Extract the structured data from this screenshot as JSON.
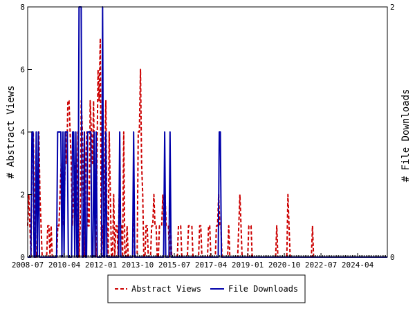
{
  "chart_data": {
    "type": "line",
    "title": "",
    "xlabel": "",
    "ylabel_left": "# Abstract Views",
    "ylabel_right": "# File Downloads",
    "ylim_left": [
      0,
      8
    ],
    "ylim_right": [
      0,
      2
    ],
    "x_start": "2008-07",
    "x_end": "2025-09",
    "x_ticks": [
      "2008-07",
      "2010-04",
      "2012-01",
      "2013-10",
      "2015-07",
      "2017-04",
      "2019-01",
      "2020-10",
      "2022-07",
      "2024-04"
    ],
    "y_left_ticks": [
      "0",
      "2",
      "4",
      "6",
      "8"
    ],
    "y_right_ticks": [
      "0",
      "2"
    ],
    "legend_position": "bottom",
    "series": [
      {
        "name": "Abstract Views",
        "axis": "left",
        "color": "#cc0000",
        "style": "dashed",
        "values": [
          1,
          2,
          1,
          0,
          4,
          4,
          2,
          0,
          0,
          2,
          4,
          2,
          1,
          0,
          0,
          0,
          0,
          0,
          1,
          1,
          0,
          1,
          0,
          0,
          0,
          0,
          0,
          1,
          1,
          2,
          3,
          2,
          1,
          2,
          4,
          3,
          5,
          5,
          4,
          3,
          1,
          2,
          3,
          3,
          1,
          4,
          0,
          1,
          5,
          4,
          2,
          0,
          3,
          4,
          1,
          1,
          5,
          4,
          3,
          5,
          2,
          0,
          3,
          6,
          5,
          7,
          0,
          1,
          0,
          3,
          5,
          1,
          0,
          4,
          2,
          0,
          0,
          2,
          0,
          1,
          1,
          0,
          2,
          1,
          1,
          0,
          4,
          0,
          0,
          1,
          0,
          0,
          0,
          0,
          0,
          2,
          0,
          0,
          0,
          4,
          4,
          6,
          3,
          2,
          0,
          0,
          1,
          1,
          0,
          0,
          0,
          1,
          1,
          2,
          1,
          1,
          0,
          0,
          1,
          1,
          1,
          2,
          1,
          2,
          1,
          1,
          1,
          0,
          1,
          0,
          0,
          0,
          0,
          0,
          0,
          1,
          1,
          1,
          0,
          0,
          0,
          0,
          0,
          0,
          1,
          1,
          1,
          1,
          0,
          0,
          0,
          0,
          0,
          0,
          1,
          1,
          0,
          0,
          0,
          0,
          0,
          0,
          1,
          1,
          0,
          0,
          0,
          0,
          0,
          1,
          1,
          2,
          1,
          1,
          0,
          0,
          0,
          0,
          0,
          0,
          1,
          0,
          0,
          0,
          0,
          0,
          0,
          0,
          0,
          1,
          2,
          1,
          0,
          0,
          0,
          0,
          0,
          0,
          1,
          1,
          1,
          0,
          0,
          0,
          0,
          0,
          0,
          0,
          0,
          0,
          0,
          0,
          0,
          0,
          0,
          0,
          0,
          0,
          0,
          0,
          0,
          0,
          0,
          1,
          0,
          0,
          0,
          0,
          0,
          0,
          0,
          0,
          0,
          2,
          1,
          0,
          0,
          0,
          0,
          0,
          0,
          0,
          0,
          0,
          0,
          0,
          0,
          0,
          0,
          0,
          0,
          0,
          0,
          0,
          0,
          1,
          0,
          0,
          0,
          0,
          0,
          0,
          0,
          0,
          0,
          0,
          0,
          0,
          0,
          0,
          0,
          0,
          0,
          0,
          0,
          0,
          0,
          0,
          0,
          0,
          0,
          0,
          0,
          0,
          0,
          0,
          0,
          0,
          0,
          0,
          0,
          0,
          0,
          0,
          0,
          0,
          0,
          0,
          0,
          0,
          0,
          0,
          0,
          0,
          0,
          0,
          0,
          0,
          0,
          0,
          0,
          0,
          0,
          0,
          0,
          0,
          0,
          0,
          0,
          0,
          0,
          0,
          0
        ]
      },
      {
        "name": "File Downloads",
        "axis": "right",
        "color": "#0000aa",
        "style": "solid",
        "values": [
          0,
          0,
          0,
          0,
          1,
          1,
          0,
          0,
          1,
          0,
          1,
          0,
          0,
          0,
          0,
          0,
          0,
          0,
          0,
          0,
          0,
          0,
          0,
          0,
          0,
          0,
          0,
          0,
          1,
          1,
          1,
          1,
          0,
          1,
          0,
          1,
          1,
          1,
          0,
          0,
          0,
          0,
          1,
          1,
          0,
          1,
          0,
          0,
          2,
          2,
          2,
          0,
          0,
          1,
          0,
          0,
          1,
          1,
          1,
          1,
          0,
          0,
          1,
          0,
          1,
          0,
          0,
          0,
          0,
          0,
          2,
          0,
          0,
          1,
          0,
          0,
          0,
          0,
          0,
          0,
          0,
          0,
          0,
          0,
          0,
          0,
          1,
          0,
          0,
          0,
          0,
          0,
          0,
          0,
          0,
          0,
          0,
          0,
          0,
          1,
          0,
          0,
          0,
          0,
          0,
          0,
          0,
          0,
          0,
          0,
          0,
          0,
          0,
          0,
          0,
          0,
          0,
          0,
          0,
          0,
          0,
          0,
          0,
          0,
          0,
          0,
          0,
          0,
          1,
          0,
          0,
          0,
          0,
          1,
          0,
          0,
          0,
          0,
          0,
          0,
          0,
          0,
          0,
          0,
          0,
          0,
          0,
          0,
          0,
          0,
          0,
          0,
          0,
          0,
          0,
          0,
          0,
          0,
          0,
          0,
          0,
          0,
          0,
          0,
          0,
          0,
          0,
          0,
          0,
          0,
          0,
          0,
          0,
          0,
          0,
          0,
          0,
          0,
          0,
          1,
          1,
          0,
          0,
          0,
          0,
          0,
          0,
          0,
          0,
          0,
          0,
          0,
          0,
          0,
          0,
          0,
          0,
          0,
          0,
          0,
          0,
          0,
          0,
          0,
          0,
          0,
          0,
          0,
          0,
          0,
          0,
          0,
          0,
          0,
          0,
          0,
          0,
          0,
          0,
          0,
          0,
          0,
          0,
          0,
          0,
          0,
          0,
          0,
          0,
          0,
          0,
          0,
          0,
          0,
          0,
          0,
          0,
          0,
          0,
          0,
          0,
          0,
          0,
          0,
          0,
          0,
          0,
          0,
          0,
          0,
          0,
          0,
          0,
          0,
          0,
          0,
          0,
          0,
          0,
          0,
          0,
          0,
          0,
          0,
          0,
          0,
          0,
          0,
          0,
          0,
          0,
          0,
          0,
          0,
          0,
          0,
          0,
          0,
          0,
          0,
          0,
          0,
          0,
          0,
          0,
          0,
          0,
          0,
          0,
          0,
          0,
          0,
          0,
          0,
          0,
          0,
          0,
          0,
          0,
          0,
          0,
          0,
          0,
          0,
          0,
          0,
          0,
          0,
          0,
          0,
          0,
          0,
          0,
          0,
          0,
          0,
          0,
          0,
          0,
          0,
          0,
          0,
          0,
          0,
          0,
          0,
          0,
          0,
          0,
          0,
          0,
          0,
          0,
          0,
          0,
          0,
          0
        ]
      }
    ]
  }
}
